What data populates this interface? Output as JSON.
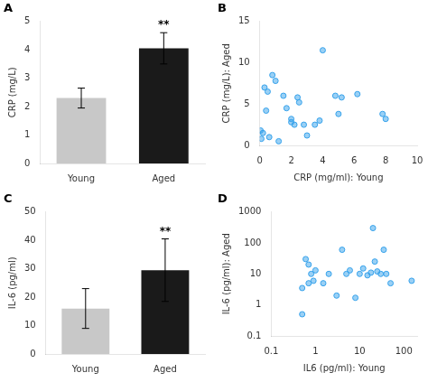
{
  "chart_data": [
    {
      "type": "bar",
      "title": "A",
      "categories": [
        "Young",
        "Aged"
      ],
      "values": [
        2.3,
        4.05
      ],
      "errors": [
        0.35,
        0.55
      ],
      "colors": [
        "#c8c8c8",
        "#1a1a1a"
      ],
      "ylabel": "CRP (mg/L)",
      "ylim": [
        0,
        5
      ],
      "yticks": [
        0,
        1,
        2,
        3,
        4,
        5
      ],
      "grid": false,
      "annotations": [
        {
          "text": "**",
          "category": "Aged"
        }
      ]
    },
    {
      "type": "scatter",
      "title": "B",
      "xlabel": "CRP (mg/ml): Young",
      "ylabel": "CRP (mg/L): Aged",
      "xlim": [
        0,
        10
      ],
      "ylim": [
        0,
        15
      ],
      "xticks": [
        0,
        2,
        4,
        6,
        8,
        10
      ],
      "yticks": [
        0,
        5,
        10,
        15
      ],
      "x": [
        0.05,
        0.1,
        0.2,
        0.3,
        0.4,
        0.5,
        0.6,
        0.8,
        1.0,
        1.2,
        1.5,
        1.7,
        2.0,
        2.0,
        2.2,
        2.4,
        2.5,
        2.8,
        3.0,
        3.5,
        3.8,
        4.0,
        4.8,
        5.0,
        5.2,
        6.2,
        7.8,
        8.0
      ],
      "y": [
        1.8,
        0.8,
        1.5,
        7.0,
        4.2,
        6.5,
        1.0,
        8.5,
        7.8,
        0.5,
        6.0,
        4.5,
        2.8,
        3.2,
        2.5,
        5.8,
        5.2,
        2.5,
        1.2,
        2.5,
        3.0,
        11.5,
        6.0,
        3.8,
        5.8,
        6.2,
        3.8,
        3.2
      ],
      "grid": false
    },
    {
      "type": "bar",
      "title": "C",
      "categories": [
        "Young",
        "Aged"
      ],
      "values": [
        16.0,
        29.5
      ],
      "errors": [
        7.0,
        11.0
      ],
      "colors": [
        "#c8c8c8",
        "#1a1a1a"
      ],
      "ylabel": "IL-6 (pg/ml)",
      "ylim": [
        0,
        50
      ],
      "yticks": [
        0,
        10,
        20,
        30,
        40,
        50
      ],
      "grid": false,
      "annotations": [
        {
          "text": "**",
          "category": "Aged"
        }
      ]
    },
    {
      "type": "scatter",
      "title": "D",
      "xlabel": "IL6 (pg/ml): Young",
      "ylabel": "IL-6 (pg/ml): Aged",
      "log": true,
      "xlim": [
        0.1,
        200
      ],
      "ylim": [
        0.1,
        1000
      ],
      "xticks": [
        0.1,
        1,
        10,
        100
      ],
      "yticks": [
        0.1,
        1,
        10,
        100,
        1000
      ],
      "x": [
        0.5,
        0.5,
        0.6,
        0.7,
        0.7,
        0.8,
        0.9,
        1.0,
        1.5,
        2.0,
        3.0,
        4.0,
        5.0,
        6.0,
        8.0,
        10.0,
        12.0,
        15.0,
        18.0,
        20.0,
        22.0,
        25.0,
        30.0,
        35.0,
        40.0,
        50.0,
        150.0
      ],
      "y": [
        3.5,
        0.5,
        30.0,
        5.0,
        20.0,
        10.0,
        6.0,
        13.0,
        5.0,
        10.0,
        2.0,
        60.0,
        10.0,
        13.0,
        1.7,
        10.0,
        15.0,
        9.0,
        11.0,
        300.0,
        25.0,
        12.0,
        10.0,
        60.0,
        10.0,
        5.0,
        6.0
      ],
      "grid": false
    }
  ]
}
